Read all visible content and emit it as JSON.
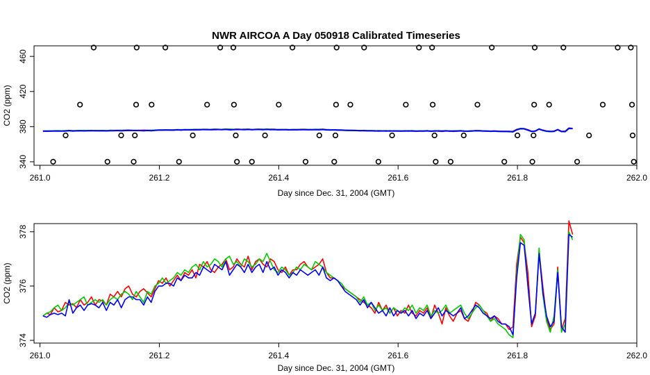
{
  "chart_data": [
    {
      "type": "scatter+line",
      "title": "NWR AIRCOA A  Day 050918  Calibrated Timeseries",
      "xlabel": "Day since Dec. 31, 2004 (GMT)",
      "ylabel": "CO2 (ppm)",
      "xlim": [
        260.99,
        262.0
      ],
      "ylim": [
        336,
        472
      ],
      "xticks": [
        261.0,
        261.2,
        261.4,
        261.6,
        261.8,
        262.0
      ],
      "xtick_labels": [
        "261.0",
        "261.2",
        "261.4",
        "261.6",
        "261.8",
        "262.0"
      ],
      "yticks": [
        340,
        380,
        420,
        460
      ],
      "ytick_labels": [
        "340",
        "380",
        "420",
        "460"
      ],
      "points": [
        {
          "x": 261.022,
          "y": 340
        },
        {
          "x": 261.043,
          "y": 370
        },
        {
          "x": 261.067,
          "y": 405
        },
        {
          "x": 261.09,
          "y": 470
        },
        {
          "x": 261.113,
          "y": 340
        },
        {
          "x": 261.136,
          "y": 370
        },
        {
          "x": 261.157,
          "y": 340
        },
        {
          "x": 261.159,
          "y": 370
        },
        {
          "x": 261.161,
          "y": 405
        },
        {
          "x": 261.162,
          "y": 470
        },
        {
          "x": 261.187,
          "y": 405
        },
        {
          "x": 261.21,
          "y": 470
        },
        {
          "x": 261.233,
          "y": 340
        },
        {
          "x": 261.256,
          "y": 370
        },
        {
          "x": 261.28,
          "y": 405
        },
        {
          "x": 261.302,
          "y": 470
        },
        {
          "x": 261.324,
          "y": 470
        },
        {
          "x": 261.325,
          "y": 405
        },
        {
          "x": 261.328,
          "y": 370
        },
        {
          "x": 261.33,
          "y": 340
        },
        {
          "x": 261.355,
          "y": 340
        },
        {
          "x": 261.377,
          "y": 370
        },
        {
          "x": 261.4,
          "y": 405
        },
        {
          "x": 261.423,
          "y": 470
        },
        {
          "x": 261.445,
          "y": 340
        },
        {
          "x": 261.468,
          "y": 370
        },
        {
          "x": 261.493,
          "y": 340
        },
        {
          "x": 261.495,
          "y": 370
        },
        {
          "x": 261.496,
          "y": 405
        },
        {
          "x": 261.497,
          "y": 470
        },
        {
          "x": 261.52,
          "y": 405
        },
        {
          "x": 261.543,
          "y": 470
        },
        {
          "x": 261.567,
          "y": 340
        },
        {
          "x": 261.59,
          "y": 370
        },
        {
          "x": 261.613,
          "y": 405
        },
        {
          "x": 261.635,
          "y": 470
        },
        {
          "x": 261.657,
          "y": 470
        },
        {
          "x": 261.658,
          "y": 405
        },
        {
          "x": 261.661,
          "y": 370
        },
        {
          "x": 261.663,
          "y": 340
        },
        {
          "x": 261.688,
          "y": 340
        },
        {
          "x": 261.71,
          "y": 370
        },
        {
          "x": 261.733,
          "y": 405
        },
        {
          "x": 261.757,
          "y": 470
        },
        {
          "x": 261.778,
          "y": 340
        },
        {
          "x": 261.8,
          "y": 370
        },
        {
          "x": 261.825,
          "y": 340
        },
        {
          "x": 261.827,
          "y": 370
        },
        {
          "x": 261.828,
          "y": 405
        },
        {
          "x": 261.829,
          "y": 470
        },
        {
          "x": 261.853,
          "y": 405
        },
        {
          "x": 261.877,
          "y": 470
        },
        {
          "x": 261.9,
          "y": 340
        },
        {
          "x": 261.92,
          "y": 370
        },
        {
          "x": 261.943,
          "y": 405
        },
        {
          "x": 261.968,
          "y": 470
        },
        {
          "x": 261.99,
          "y": 470
        },
        {
          "x": 261.992,
          "y": 405
        },
        {
          "x": 261.993,
          "y": 370
        },
        {
          "x": 261.995,
          "y": 340
        }
      ],
      "series": [
        {
          "name": "red",
          "color": "#ff0000"
        },
        {
          "name": "green",
          "color": "#00cc00"
        },
        {
          "name": "blue",
          "color": "#0000ff"
        }
      ]
    },
    {
      "type": "line",
      "title": "",
      "xlabel": "Day since Dec. 31, 2004 (GMT)",
      "ylabel": "CO2 (ppm)",
      "xlim": [
        260.99,
        262.0
      ],
      "ylim": [
        373.9,
        378.3
      ],
      "xticks": [
        261.0,
        261.2,
        261.4,
        261.6,
        261.8,
        262.0
      ],
      "xtick_labels": [
        "261.0",
        "261.2",
        "261.4",
        "261.6",
        "261.8",
        "262.0"
      ],
      "yticks": [
        374,
        376,
        378
      ],
      "ytick_labels": [
        "374",
        "376",
        "378"
      ],
      "x_start": 261.005,
      "x_step": 0.00625,
      "series": [
        {
          "name": "red",
          "color": "#ff0000",
          "values": [
            374.9,
            375.0,
            374.95,
            375.2,
            375.05,
            375.1,
            375.4,
            375.3,
            375.35,
            375.2,
            375.5,
            375.3,
            375.4,
            375.6,
            375.3,
            375.5,
            375.45,
            375.3,
            375.7,
            375.6,
            375.8,
            375.6,
            375.9,
            376.0,
            375.7,
            375.6,
            375.8,
            375.9,
            375.75,
            375.6,
            375.9,
            376.2,
            376.1,
            376.3,
            376.0,
            376.2,
            376.4,
            376.2,
            376.5,
            376.4,
            376.6,
            376.3,
            376.8,
            376.7,
            376.9,
            376.6,
            376.5,
            376.7,
            376.8,
            377.0,
            376.6,
            376.7,
            377.0,
            376.8,
            376.7,
            377.1,
            376.6,
            376.9,
            377.0,
            376.8,
            376.7,
            377.0,
            376.9,
            376.6,
            376.5,
            376.7,
            376.4,
            376.6,
            376.6,
            376.8,
            376.9,
            376.7,
            376.6,
            376.7,
            376.8,
            377.0,
            376.5,
            376.3,
            376.3,
            376.2,
            376.0,
            375.9,
            375.8,
            375.7,
            375.6,
            375.5,
            375.4,
            375.3,
            375.2,
            375.0,
            375.4,
            375.1,
            375.3,
            375.0,
            375.2,
            374.9,
            375.1,
            375.0,
            375.3,
            375.0,
            374.9,
            375.1,
            375.0,
            375.2,
            374.8,
            375.3,
            375.0,
            374.6,
            375.2,
            374.9,
            374.7,
            375.0,
            375.1,
            374.8,
            374.7,
            375.0,
            375.4,
            375.3,
            375.1,
            375.0,
            374.7,
            374.9,
            374.8,
            374.6,
            374.6,
            374.4,
            374.5,
            376.8,
            377.8,
            377.6,
            376.5,
            374.5,
            374.9,
            377.3,
            376.0,
            374.8,
            374.4,
            374.6,
            376.7,
            374.4,
            374.8,
            378.4,
            377.9
          ]
        },
        {
          "name": "green",
          "color": "#00cc00",
          "values": [
            374.9,
            375.0,
            375.05,
            375.2,
            375.3,
            375.1,
            375.2,
            375.4,
            375.3,
            375.4,
            375.5,
            375.6,
            375.3,
            375.4,
            375.5,
            375.4,
            375.5,
            375.3,
            375.5,
            375.6,
            375.5,
            375.7,
            375.8,
            375.7,
            375.5,
            375.8,
            375.6,
            375.4,
            375.8,
            375.7,
            376.0,
            376.1,
            376.3,
            376.1,
            376.2,
            376.3,
            376.5,
            376.4,
            376.6,
            376.5,
            376.7,
            376.8,
            376.6,
            376.9,
            376.7,
            376.8,
            377.0,
            376.9,
            376.7,
            377.0,
            377.1,
            376.8,
            376.9,
            376.7,
            377.0,
            376.9,
            376.7,
            376.8,
            377.0,
            376.9,
            377.2,
            376.9,
            376.6,
            376.5,
            376.7,
            376.6,
            376.4,
            376.5,
            376.7,
            376.6,
            376.8,
            376.7,
            376.6,
            376.9,
            376.8,
            376.7,
            376.5,
            376.4,
            376.3,
            376.2,
            376.1,
            375.9,
            375.8,
            375.7,
            375.6,
            375.4,
            375.6,
            375.3,
            375.4,
            375.1,
            375.3,
            375.1,
            375.2,
            375.0,
            375.2,
            375.1,
            375.0,
            375.2,
            375.1,
            375.3,
            375.0,
            375.2,
            375.1,
            375.3,
            374.9,
            375.1,
            375.0,
            375.1,
            375.3,
            375.0,
            375.1,
            375.2,
            375.3,
            375.0,
            374.8,
            375.0,
            375.2,
            375.3,
            375.1,
            374.9,
            374.7,
            374.8,
            374.6,
            374.5,
            374.4,
            374.2,
            374.1,
            376.5,
            377.9,
            377.7,
            376.0,
            374.6,
            375.0,
            377.4,
            375.7,
            374.7,
            374.3,
            374.9,
            376.6,
            374.3,
            374.6,
            378.0,
            377.7
          ]
        },
        {
          "name": "blue",
          "color": "#0000ff",
          "values": [
            374.9,
            374.85,
            374.95,
            375.0,
            374.95,
            375.0,
            374.9,
            375.5,
            375.0,
            375.2,
            375.3,
            375.1,
            375.3,
            375.35,
            375.3,
            375.2,
            375.4,
            375.1,
            375.4,
            375.3,
            375.5,
            375.2,
            375.5,
            375.6,
            375.6,
            375.5,
            375.5,
            375.3,
            375.6,
            375.4,
            375.8,
            376.0,
            376.0,
            376.1,
            376.1,
            376.0,
            376.3,
            376.2,
            376.4,
            376.3,
            376.3,
            376.5,
            376.4,
            376.7,
            376.6,
            376.5,
            376.8,
            376.7,
            376.6,
            376.9,
            376.4,
            376.6,
            376.8,
            376.7,
            376.5,
            376.8,
            376.5,
            376.7,
            376.8,
            376.5,
            376.9,
            376.6,
            376.7,
            376.4,
            376.6,
            376.5,
            376.3,
            376.5,
            376.4,
            376.6,
            376.5,
            376.4,
            376.5,
            376.6,
            376.4,
            376.7,
            376.3,
            376.2,
            376.3,
            376.2,
            376.0,
            375.8,
            375.7,
            375.6,
            375.5,
            375.3,
            375.5,
            375.2,
            375.4,
            375.2,
            375.0,
            375.1,
            374.9,
            375.2,
            374.9,
            375.1,
            375.0,
            375.1,
            374.9,
            375.1,
            374.8,
            375.0,
            374.9,
            375.1,
            374.8,
            375.0,
            375.2,
            374.9,
            375.1,
            375.0,
            374.9,
            375.0,
            375.2,
            374.8,
            374.9,
            375.1,
            375.3,
            375.2,
            375.0,
            374.9,
            374.8,
            374.9,
            374.7,
            374.6,
            374.6,
            374.5,
            374.2,
            376.3,
            377.6,
            377.5,
            376.0,
            374.6,
            375.0,
            377.2,
            375.8,
            374.9,
            374.5,
            374.7,
            376.5,
            374.5,
            374.3,
            377.9,
            377.8
          ]
        }
      ]
    }
  ]
}
